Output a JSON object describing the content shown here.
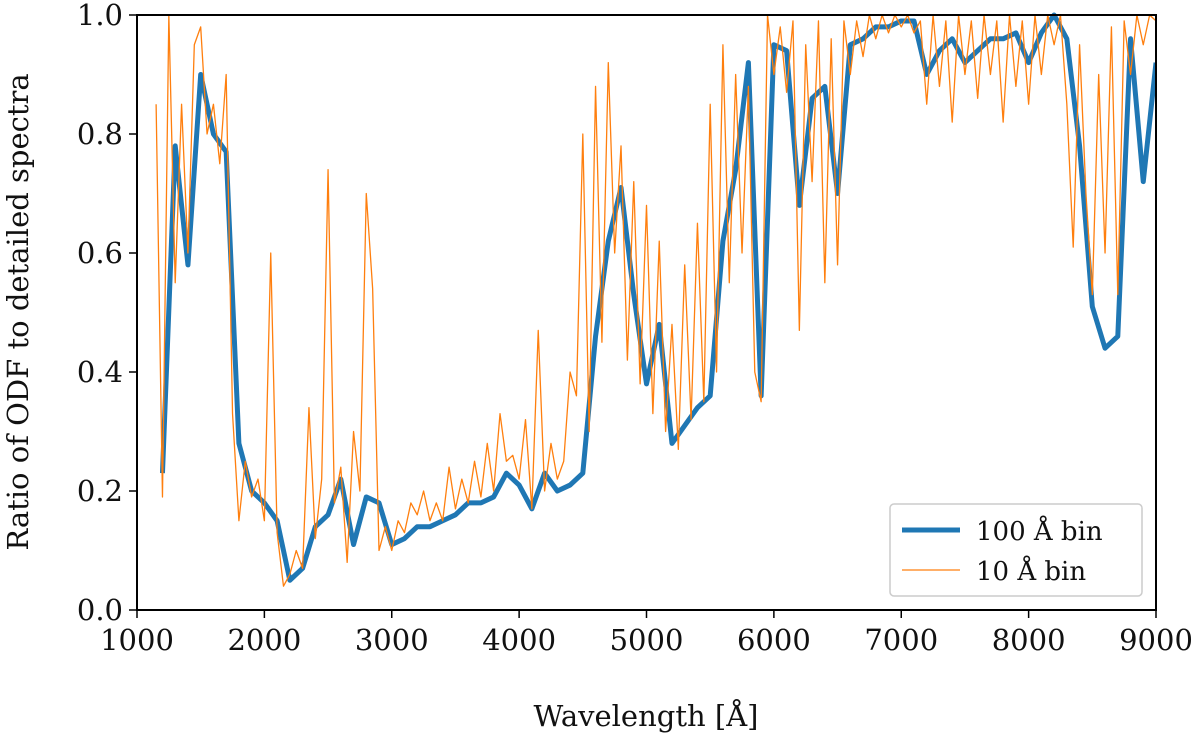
{
  "chart_data": {
    "type": "line",
    "xlabel": "Wavelength [Å]",
    "ylabel": "Ratio of ODF to detailed spectra",
    "xlim": [
      1000,
      9000
    ],
    "ylim": [
      0,
      1
    ],
    "xticks": [
      1000,
      2000,
      3000,
      4000,
      5000,
      6000,
      7000,
      8000,
      9000
    ],
    "yticks": [
      {
        "value": 0,
        "label": "0.0"
      },
      0.2,
      0.4,
      0.6,
      0.8,
      {
        "value": 1,
        "label": "1.0"
      }
    ],
    "legend": "lower right",
    "series": [
      {
        "name": "100 Å bin",
        "color": "#1f77b4",
        "width": 5,
        "x": [
          1200,
          1300,
          1400,
          1500,
          1600,
          1700,
          1800,
          1900,
          2000,
          2100,
          2200,
          2300,
          2400,
          2500,
          2600,
          2700,
          2800,
          2900,
          3000,
          3100,
          3200,
          3300,
          3400,
          3500,
          3600,
          3700,
          3800,
          3900,
          4000,
          4100,
          4200,
          4300,
          4400,
          4500,
          4600,
          4700,
          4800,
          4900,
          5000,
          5100,
          5200,
          5300,
          5400,
          5500,
          5600,
          5700,
          5800,
          5900,
          6000,
          6100,
          6200,
          6300,
          6400,
          6500,
          6600,
          6700,
          6800,
          6900,
          7000,
          7100,
          7200,
          7300,
          7400,
          7500,
          7600,
          7700,
          7800,
          7900,
          8000,
          8100,
          8200,
          8300,
          8400,
          8500,
          8600,
          8700,
          8800,
          8900,
          9000
        ],
        "values": [
          0.23,
          0.78,
          0.58,
          0.9,
          0.8,
          0.77,
          0.28,
          0.2,
          0.18,
          0.15,
          0.05,
          0.07,
          0.14,
          0.16,
          0.22,
          0.11,
          0.19,
          0.18,
          0.11,
          0.12,
          0.14,
          0.14,
          0.15,
          0.16,
          0.18,
          0.18,
          0.19,
          0.23,
          0.21,
          0.17,
          0.23,
          0.2,
          0.21,
          0.23,
          0.46,
          0.62,
          0.71,
          0.53,
          0.38,
          0.48,
          0.28,
          0.31,
          0.34,
          0.36,
          0.62,
          0.74,
          0.92,
          0.36,
          0.95,
          0.94,
          0.68,
          0.86,
          0.88,
          0.7,
          0.95,
          0.96,
          0.98,
          0.98,
          0.99,
          0.99,
          0.9,
          0.94,
          0.96,
          0.92,
          0.94,
          0.96,
          0.96,
          0.97,
          0.92,
          0.97,
          1.0,
          0.96,
          0.78,
          0.51,
          0.44,
          0.46,
          0.96,
          0.72,
          0.92
        ]
      },
      {
        "name": "10 Å bin",
        "color": "#ff7f0e",
        "width": 1.3,
        "x": [
          1150,
          1200,
          1250,
          1300,
          1350,
          1400,
          1450,
          1500,
          1550,
          1600,
          1650,
          1700,
          1750,
          1800,
          1850,
          1900,
          1950,
          2000,
          2050,
          2100,
          2150,
          2200,
          2250,
          2300,
          2350,
          2400,
          2450,
          2500,
          2550,
          2600,
          2650,
          2700,
          2750,
          2800,
          2850,
          2900,
          2950,
          3000,
          3050,
          3100,
          3150,
          3200,
          3250,
          3300,
          3350,
          3400,
          3450,
          3500,
          3550,
          3600,
          3650,
          3700,
          3750,
          3800,
          3850,
          3900,
          3950,
          4000,
          4050,
          4100,
          4150,
          4200,
          4250,
          4300,
          4350,
          4400,
          4450,
          4500,
          4550,
          4600,
          4650,
          4700,
          4750,
          4800,
          4850,
          4900,
          4950,
          5000,
          5050,
          5100,
          5150,
          5200,
          5250,
          5300,
          5350,
          5400,
          5450,
          5500,
          5550,
          5600,
          5650,
          5700,
          5750,
          5800,
          5850,
          5900,
          5950,
          6000,
          6050,
          6100,
          6150,
          6200,
          6250,
          6300,
          6350,
          6400,
          6450,
          6500,
          6550,
          6600,
          6650,
          6700,
          6750,
          6800,
          6850,
          6900,
          6950,
          7000,
          7050,
          7100,
          7150,
          7200,
          7250,
          7300,
          7350,
          7400,
          7450,
          7500,
          7550,
          7600,
          7650,
          7700,
          7750,
          7800,
          7850,
          7900,
          7950,
          8000,
          8050,
          8100,
          8150,
          8200,
          8250,
          8300,
          8350,
          8400,
          8450,
          8500,
          8550,
          8600,
          8650,
          8700,
          8750,
          8800,
          8850,
          8900,
          8950,
          9000
        ],
        "values": [
          0.85,
          0.19,
          1.0,
          0.55,
          0.85,
          0.6,
          0.95,
          0.98,
          0.8,
          0.85,
          0.75,
          0.9,
          0.33,
          0.15,
          0.25,
          0.19,
          0.22,
          0.15,
          0.6,
          0.13,
          0.04,
          0.06,
          0.1,
          0.07,
          0.34,
          0.12,
          0.22,
          0.74,
          0.18,
          0.24,
          0.08,
          0.3,
          0.2,
          0.7,
          0.54,
          0.1,
          0.14,
          0.1,
          0.15,
          0.13,
          0.18,
          0.16,
          0.2,
          0.15,
          0.18,
          0.15,
          0.24,
          0.17,
          0.22,
          0.18,
          0.25,
          0.19,
          0.28,
          0.2,
          0.33,
          0.25,
          0.26,
          0.22,
          0.32,
          0.17,
          0.47,
          0.2,
          0.28,
          0.22,
          0.25,
          0.4,
          0.36,
          0.8,
          0.3,
          0.88,
          0.45,
          0.92,
          0.6,
          0.78,
          0.42,
          0.72,
          0.38,
          0.68,
          0.33,
          0.62,
          0.3,
          0.48,
          0.27,
          0.58,
          0.32,
          0.65,
          0.35,
          0.85,
          0.4,
          0.95,
          0.55,
          0.9,
          0.6,
          0.88,
          0.4,
          0.35,
          1.0,
          0.9,
          0.98,
          0.87,
          0.99,
          0.47,
          0.95,
          0.72,
          0.99,
          0.55,
          0.96,
          0.58,
          0.99,
          0.9,
          0.99,
          0.93,
          1.0,
          0.96,
          1.0,
          0.97,
          1.0,
          0.98,
          1.0,
          0.97,
          0.99,
          0.85,
          1.0,
          0.88,
          0.99,
          0.82,
          1.0,
          0.9,
          0.99,
          0.86,
          1.0,
          0.9,
          0.99,
          0.82,
          1.0,
          0.88,
          0.99,
          0.85,
          1.0,
          0.9,
          1.0,
          0.95,
          1.0,
          0.85,
          0.61,
          0.95,
          0.7,
          0.53,
          0.9,
          0.6,
          0.98,
          0.53,
          0.99,
          0.9,
          1.0,
          0.95,
          1.0,
          0.99
        ]
      }
    ]
  }
}
